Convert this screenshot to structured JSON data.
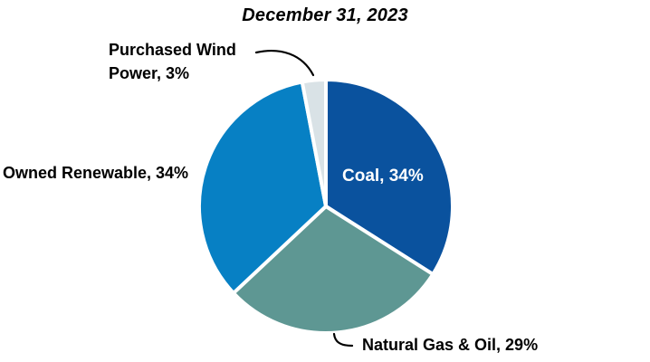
{
  "chart_data": {
    "type": "pie",
    "title": "December 31, 2023",
    "direction": "clockwise",
    "start_angle_deg": 0,
    "legend": "none",
    "label_style": "category-and-percent",
    "slices": [
      {
        "id": "coal",
        "label": "Coal",
        "value": 34,
        "display": "Coal, 34%",
        "color": "#0A529E",
        "label_position": "inside"
      },
      {
        "id": "natural-gas-oil",
        "label": "Natural Gas & Oil",
        "value": 29,
        "display": "Natural Gas & Oil, 29%",
        "color": "#5E9793",
        "label_position": "outside"
      },
      {
        "id": "owned-renewable",
        "label": "Owned Renewable",
        "value": 34,
        "display": "Owned Renewable, 34%",
        "color": "#0780C4",
        "label_position": "outside"
      },
      {
        "id": "purchased-wind-power",
        "label": "Purchased Wind Power",
        "value": 3,
        "display": "Purchased Wind Power, 3%",
        "color": "#D9E2E6",
        "label_position": "outside"
      }
    ]
  },
  "labels": {
    "coal": "Coal, 34%",
    "natural_gas_oil": "Natural Gas & Oil, 29%",
    "owned_renewable": "Owned Renewable, 34%",
    "purchased_wind_line1": "Purchased Wind",
    "purchased_wind_line2": "Power, 3%"
  },
  "colors": {
    "slice_border": "#ffffff",
    "leader_line": "#000000",
    "title_text": "#000000",
    "inside_label_text": "#ffffff"
  }
}
